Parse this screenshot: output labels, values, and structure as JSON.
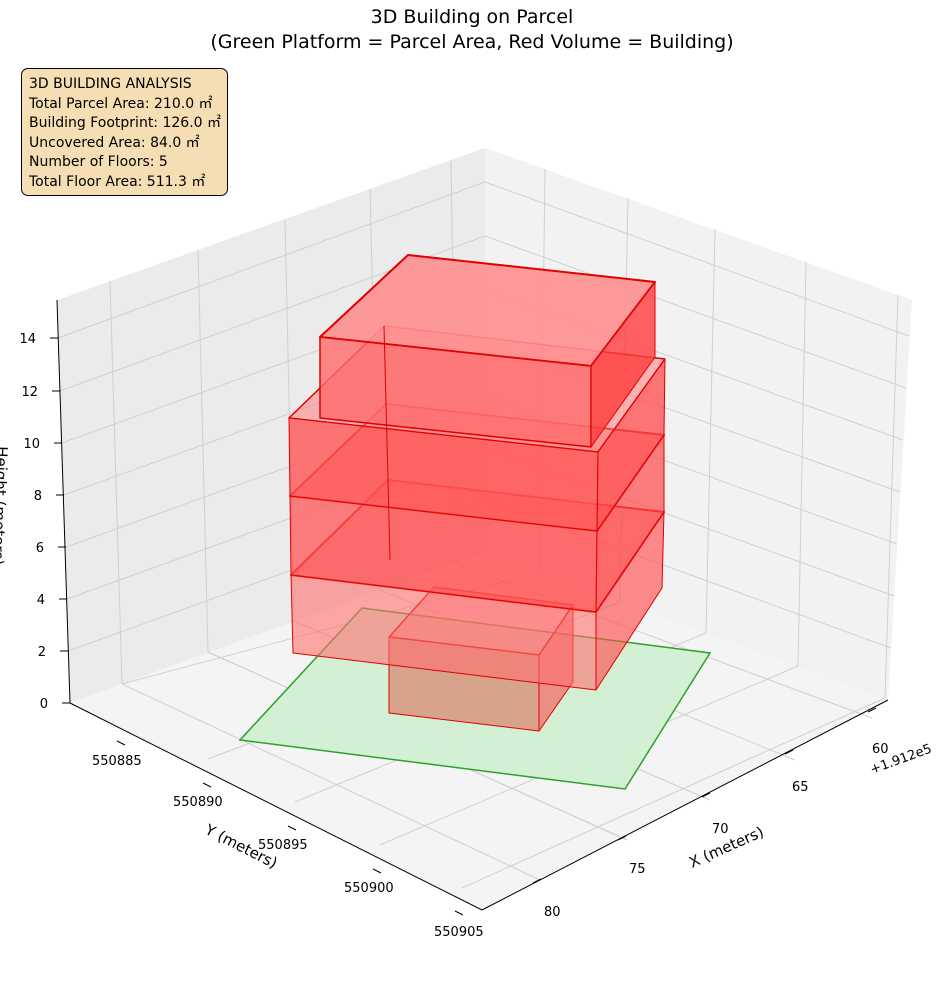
{
  "title": {
    "line1": "3D Building on Parcel",
    "line2": "(Green Platform = Parcel Area, Red Volume = Building)"
  },
  "info_box": {
    "heading": "3D BUILDING ANALYSIS",
    "lines": [
      "Total Parcel Area: 210.0 ㎡",
      "Building Footprint: 126.0 ㎡",
      "Uncovered Area: 84.0 ㎡",
      "Number of Floors: 5",
      "Total Floor Area: 511.3 ㎡"
    ]
  },
  "colors": {
    "parcel_fill": "#d4f0d4",
    "parcel_edge": "#2ca02c",
    "building_fill": "#ff0000",
    "building_edge": "#e00000",
    "info_bg": "#f5deb3",
    "pane_left": "#ebebeb",
    "pane_right": "#f2f2f2",
    "pane_floor": "#f4f4f4",
    "grid": "#cfcfcf"
  },
  "chart_data": {
    "type": "3d-volume",
    "x_axis": {
      "label": "X (meters)",
      "offset_label": "+1.912e5",
      "ticks": [
        "60",
        "65",
        "70",
        "75",
        "80"
      ]
    },
    "y_axis": {
      "label": "Y (meters)",
      "ticks": [
        "550885",
        "550890",
        "550895",
        "550900",
        "550905"
      ]
    },
    "z_axis": {
      "label": "Height (meters)",
      "ticks": [
        "0",
        "2",
        "4",
        "6",
        "8",
        "10",
        "12",
        "14"
      ],
      "range": [
        0,
        15
      ]
    },
    "parcel": {
      "area_m2": 210.0,
      "height": 0
    },
    "building": {
      "footprint_m2": 126.0,
      "floors": 5,
      "total_floor_area_m2": 511.3,
      "max_height_m": 15
    }
  }
}
